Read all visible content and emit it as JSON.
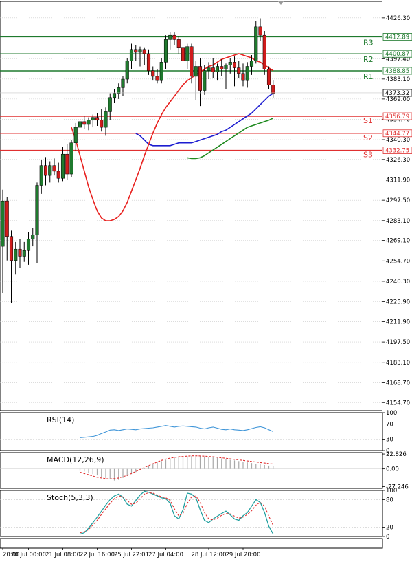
{
  "colors": {
    "background": "#ffffff",
    "grid": "#c8c8c8",
    "frame": "#000000",
    "bull": "#1f7a2e",
    "bear": "#d01c1c",
    "wick": "#000000",
    "resistance": "#1f7a2e",
    "support": "#e03030",
    "ma_fast": "#e8201e",
    "ma_mid": "#1d1dd0",
    "ma_slow": "#1f8a1f",
    "rsi": "#3f95d8",
    "macd_hist": "#a8a8a8",
    "macd_signal": "#e03030",
    "stoch_main": "#22a0a0",
    "stoch_signal": "#e03030",
    "current_tag": "#000000"
  },
  "chart_data": [
    {
      "type": "candlestick",
      "panel": "price",
      "ylim": [
        4149.0,
        4434.0
      ],
      "y_ticks": [
        "4426.30",
        "4412.89",
        "4400.87",
        "4397.40",
        "4388.85",
        "4383.10",
        "4373.32",
        "4369.00",
        "4356.79",
        "4354.70",
        "4344.77",
        "4340.30",
        "4332.75",
        "4326.30",
        "4311.90",
        "4297.50",
        "4283.10",
        "4269.10",
        "4254.70",
        "4240.30",
        "4225.90",
        "4211.90",
        "4197.50",
        "4183.10",
        "4168.70",
        "4154.70"
      ],
      "x_labels": [
        "20:00",
        "20 Jul 00:00",
        "21 Jul 08:00",
        "22 Jul 16:00",
        "25 Jul 22:01",
        "27 Jul 04:00",
        "28 Jul 12:00",
        "29 Jul 20:00"
      ],
      "levels": [
        {
          "name": "R3",
          "value": 4412.89,
          "kind": "resistance"
        },
        {
          "name": "R2",
          "value": 4400.87,
          "kind": "resistance"
        },
        {
          "name": "R1",
          "value": 4388.85,
          "kind": "resistance"
        },
        {
          "name": "S1",
          "value": 4356.79,
          "kind": "support"
        },
        {
          "name": "S2",
          "value": 4344.77,
          "kind": "support"
        },
        {
          "name": "S3",
          "value": 4332.75,
          "kind": "support"
        }
      ],
      "current_price": "4373.32",
      "candles": [
        {
          "o": 4265,
          "h": 4305,
          "l": 4232,
          "c": 4297
        },
        {
          "o": 4297,
          "h": 4300,
          "l": 4255,
          "c": 4272
        },
        {
          "o": 4272,
          "h": 4276,
          "l": 4225,
          "c": 4255
        },
        {
          "o": 4255,
          "h": 4268,
          "l": 4245,
          "c": 4263
        },
        {
          "o": 4263,
          "h": 4270,
          "l": 4250,
          "c": 4258
        },
        {
          "o": 4258,
          "h": 4268,
          "l": 4254,
          "c": 4262
        },
        {
          "o": 4262,
          "h": 4275,
          "l": 4252,
          "c": 4270
        },
        {
          "o": 4270,
          "h": 4278,
          "l": 4265,
          "c": 4273
        },
        {
          "o": 4273,
          "h": 4310,
          "l": 4253,
          "c": 4308
        },
        {
          "o": 4308,
          "h": 4326,
          "l": 4302,
          "c": 4322
        },
        {
          "o": 4322,
          "h": 4328,
          "l": 4308,
          "c": 4315
        },
        {
          "o": 4315,
          "h": 4325,
          "l": 4310,
          "c": 4322
        },
        {
          "o": 4322,
          "h": 4327,
          "l": 4315,
          "c": 4318
        },
        {
          "o": 4318,
          "h": 4324,
          "l": 4310,
          "c": 4313
        },
        {
          "o": 4313,
          "h": 4335,
          "l": 4311,
          "c": 4330
        },
        {
          "o": 4330,
          "h": 4337,
          "l": 4312,
          "c": 4316
        },
        {
          "o": 4316,
          "h": 4340,
          "l": 4314,
          "c": 4338
        },
        {
          "o": 4338,
          "h": 4352,
          "l": 4332,
          "c": 4349
        },
        {
          "o": 4349,
          "h": 4356,
          "l": 4345,
          "c": 4353
        },
        {
          "o": 4353,
          "h": 4357,
          "l": 4348,
          "c": 4351
        },
        {
          "o": 4351,
          "h": 4356,
          "l": 4347,
          "c": 4354
        },
        {
          "o": 4354,
          "h": 4358,
          "l": 4349,
          "c": 4356
        },
        {
          "o": 4356,
          "h": 4359,
          "l": 4350,
          "c": 4354
        },
        {
          "o": 4354,
          "h": 4362,
          "l": 4346,
          "c": 4349
        },
        {
          "o": 4349,
          "h": 4363,
          "l": 4343,
          "c": 4360
        },
        {
          "o": 4360,
          "h": 4373,
          "l": 4354,
          "c": 4370
        },
        {
          "o": 4370,
          "h": 4376,
          "l": 4366,
          "c": 4373
        },
        {
          "o": 4373,
          "h": 4380,
          "l": 4369,
          "c": 4377
        },
        {
          "o": 4377,
          "h": 4385,
          "l": 4371,
          "c": 4383
        },
        {
          "o": 4383,
          "h": 4398,
          "l": 4380,
          "c": 4396
        },
        {
          "o": 4396,
          "h": 4408,
          "l": 4390,
          "c": 4404
        },
        {
          "o": 4404,
          "h": 4407,
          "l": 4396,
          "c": 4402
        },
        {
          "o": 4402,
          "h": 4406,
          "l": 4392,
          "c": 4404
        },
        {
          "o": 4404,
          "h": 4405,
          "l": 4393,
          "c": 4401
        },
        {
          "o": 4401,
          "h": 4404,
          "l": 4386,
          "c": 4389
        },
        {
          "o": 4389,
          "h": 4392,
          "l": 4382,
          "c": 4385
        },
        {
          "o": 4385,
          "h": 4390,
          "l": 4380,
          "c": 4382
        },
        {
          "o": 4382,
          "h": 4398,
          "l": 4380,
          "c": 4395
        },
        {
          "o": 4395,
          "h": 4414,
          "l": 4390,
          "c": 4411
        },
        {
          "o": 4411,
          "h": 4416,
          "l": 4404,
          "c": 4414
        },
        {
          "o": 4414,
          "h": 4416,
          "l": 4407,
          "c": 4411
        },
        {
          "o": 4411,
          "h": 4413,
          "l": 4401,
          "c": 4405
        },
        {
          "o": 4405,
          "h": 4409,
          "l": 4392,
          "c": 4396
        },
        {
          "o": 4396,
          "h": 4408,
          "l": 4390,
          "c": 4406
        },
        {
          "o": 4406,
          "h": 4408,
          "l": 4380,
          "c": 4385
        },
        {
          "o": 4385,
          "h": 4396,
          "l": 4368,
          "c": 4392
        },
        {
          "o": 4392,
          "h": 4398,
          "l": 4364,
          "c": 4375
        },
        {
          "o": 4375,
          "h": 4393,
          "l": 4372,
          "c": 4389
        },
        {
          "o": 4389,
          "h": 4395,
          "l": 4383,
          "c": 4391
        },
        {
          "o": 4391,
          "h": 4398,
          "l": 4384,
          "c": 4388
        },
        {
          "o": 4388,
          "h": 4394,
          "l": 4382,
          "c": 4392
        },
        {
          "o": 4392,
          "h": 4397,
          "l": 4385,
          "c": 4390
        },
        {
          "o": 4390,
          "h": 4394,
          "l": 4376,
          "c": 4393
        },
        {
          "o": 4393,
          "h": 4398,
          "l": 4387,
          "c": 4395
        },
        {
          "o": 4395,
          "h": 4399,
          "l": 4378,
          "c": 4391
        },
        {
          "o": 4391,
          "h": 4396,
          "l": 4384,
          "c": 4387
        },
        {
          "o": 4387,
          "h": 4394,
          "l": 4378,
          "c": 4382
        },
        {
          "o": 4382,
          "h": 4395,
          "l": 4377,
          "c": 4392
        },
        {
          "o": 4392,
          "h": 4400,
          "l": 4386,
          "c": 4396
        },
        {
          "o": 4396,
          "h": 4424,
          "l": 4394,
          "c": 4420
        },
        {
          "o": 4420,
          "h": 4426,
          "l": 4410,
          "c": 4414
        },
        {
          "o": 4414,
          "h": 4417,
          "l": 4386,
          "c": 4390
        },
        {
          "o": 4390,
          "h": 4392,
          "l": 4376,
          "c": 4379
        },
        {
          "o": 4379,
          "h": 4382,
          "l": 4370,
          "c": 4373
        }
      ],
      "ma_fast": [
        4349,
        4340,
        4329,
        4318,
        4307,
        4298,
        4290,
        4285,
        4283,
        4283,
        4284,
        4286,
        4290,
        4296,
        4304,
        4312,
        4320,
        4329,
        4337,
        4345,
        4352,
        4358,
        4363,
        4367,
        4371,
        4375,
        4379,
        4382,
        4384,
        4386,
        4388,
        4390,
        4392,
        4393,
        4395,
        4397,
        4398,
        4399,
        4400,
        4401,
        4400,
        4399,
        4398,
        4396,
        4395,
        4393,
        4391,
        4389
      ],
      "ma_mid": [
        4344.6,
        4343,
        4340,
        4337,
        4336,
        4336,
        4336,
        4336,
        4336,
        4337,
        4338,
        4338,
        4338,
        4338,
        4339,
        4340,
        4341,
        4342,
        4343,
        4344,
        4346,
        4347,
        4349,
        4351,
        4353,
        4355,
        4357,
        4359,
        4362,
        4365,
        4368,
        4371,
        4373
      ],
      "ma_slow": [
        4327.5,
        4327,
        4327,
        4327.5,
        4329,
        4331,
        4333,
        4335,
        4337,
        4339,
        4341,
        4343,
        4345,
        4347,
        4349,
        4350,
        4351,
        4352,
        4353,
        4354,
        4355.5
      ],
      "x_ticks_at": [
        0,
        6,
        14,
        22,
        30,
        38,
        48,
        56,
        63
      ]
    },
    {
      "type": "line",
      "panel": "rsi",
      "title": "RSI(14)",
      "ylim": [
        0,
        100
      ],
      "y_ticks": [
        "100",
        "70",
        "30",
        "0"
      ],
      "series": [
        {
          "name": "RSI(14)",
          "values": [
            34,
            35,
            36,
            37,
            40,
            45,
            49,
            54,
            55,
            53,
            55,
            57,
            56,
            55,
            57,
            58,
            59,
            60,
            62,
            64,
            66,
            64,
            62,
            64,
            65,
            64,
            63,
            62,
            59,
            57,
            60,
            62,
            59,
            56,
            55,
            57,
            55,
            54,
            53,
            55,
            58,
            61,
            63,
            60,
            55,
            50
          ]
        }
      ]
    },
    {
      "type": "bar",
      "panel": "macd",
      "title": "MACD(12,26,9)",
      "ylim": [
        -30,
        25
      ],
      "y_ticks": [
        "22.826",
        "0.00",
        "-27.246"
      ],
      "histogram": [
        -3,
        -4,
        -6,
        -8,
        -10,
        -12,
        -14,
        -16,
        -18,
        -17,
        -14,
        -11,
        -8,
        -5,
        -2,
        1,
        4,
        7,
        10,
        12,
        14,
        16,
        17,
        18,
        19,
        19.5,
        20,
        20,
        19.5,
        19,
        18.5,
        18,
        17,
        16,
        15,
        14,
        13,
        12,
        11,
        10,
        9,
        8,
        7,
        6,
        5,
        4
      ],
      "series": [
        {
          "name": "signal",
          "values": [
            -5,
            -7,
            -9,
            -11,
            -13,
            -14,
            -15,
            -15.5,
            -15,
            -14,
            -12,
            -10,
            -7,
            -4,
            -1,
            2,
            5,
            8,
            10.5,
            13,
            15,
            16.5,
            17.5,
            18.5,
            19,
            19.5,
            20,
            20,
            19.8,
            19.5,
            19,
            18.5,
            17.8,
            17,
            16.2,
            15.4,
            14.6,
            13.8,
            13,
            12.2,
            11.4,
            10.6,
            9.8,
            9,
            8.2,
            7.5
          ]
        }
      ]
    },
    {
      "type": "line",
      "panel": "stoch",
      "title": "Stoch(5,3,3)",
      "ylim": [
        0,
        100
      ],
      "y_ticks": [
        "100",
        "80",
        "20",
        "0"
      ],
      "series": [
        {
          "name": "main",
          "values": [
            5,
            8,
            18,
            30,
            42,
            55,
            68,
            80,
            88,
            92,
            85,
            70,
            66,
            78,
            90,
            98,
            96,
            92,
            88,
            84,
            82,
            72,
            45,
            38,
            58,
            94,
            92,
            84,
            58,
            35,
            30,
            38,
            44,
            50,
            55,
            47,
            38,
            35,
            45,
            52,
            66,
            80,
            74,
            52,
            22,
            5
          ]
        },
        {
          "name": "signal",
          "values": [
            8,
            10,
            15,
            25,
            35,
            48,
            60,
            72,
            82,
            88,
            86,
            78,
            70,
            72,
            82,
            92,
            95,
            94,
            90,
            86,
            84,
            78,
            60,
            45,
            50,
            72,
            86,
            88,
            74,
            52,
            38,
            36,
            40,
            46,
            50,
            49,
            44,
            40,
            42,
            48,
            56,
            68,
            74,
            66,
            44,
            24
          ]
        }
      ]
    }
  ]
}
